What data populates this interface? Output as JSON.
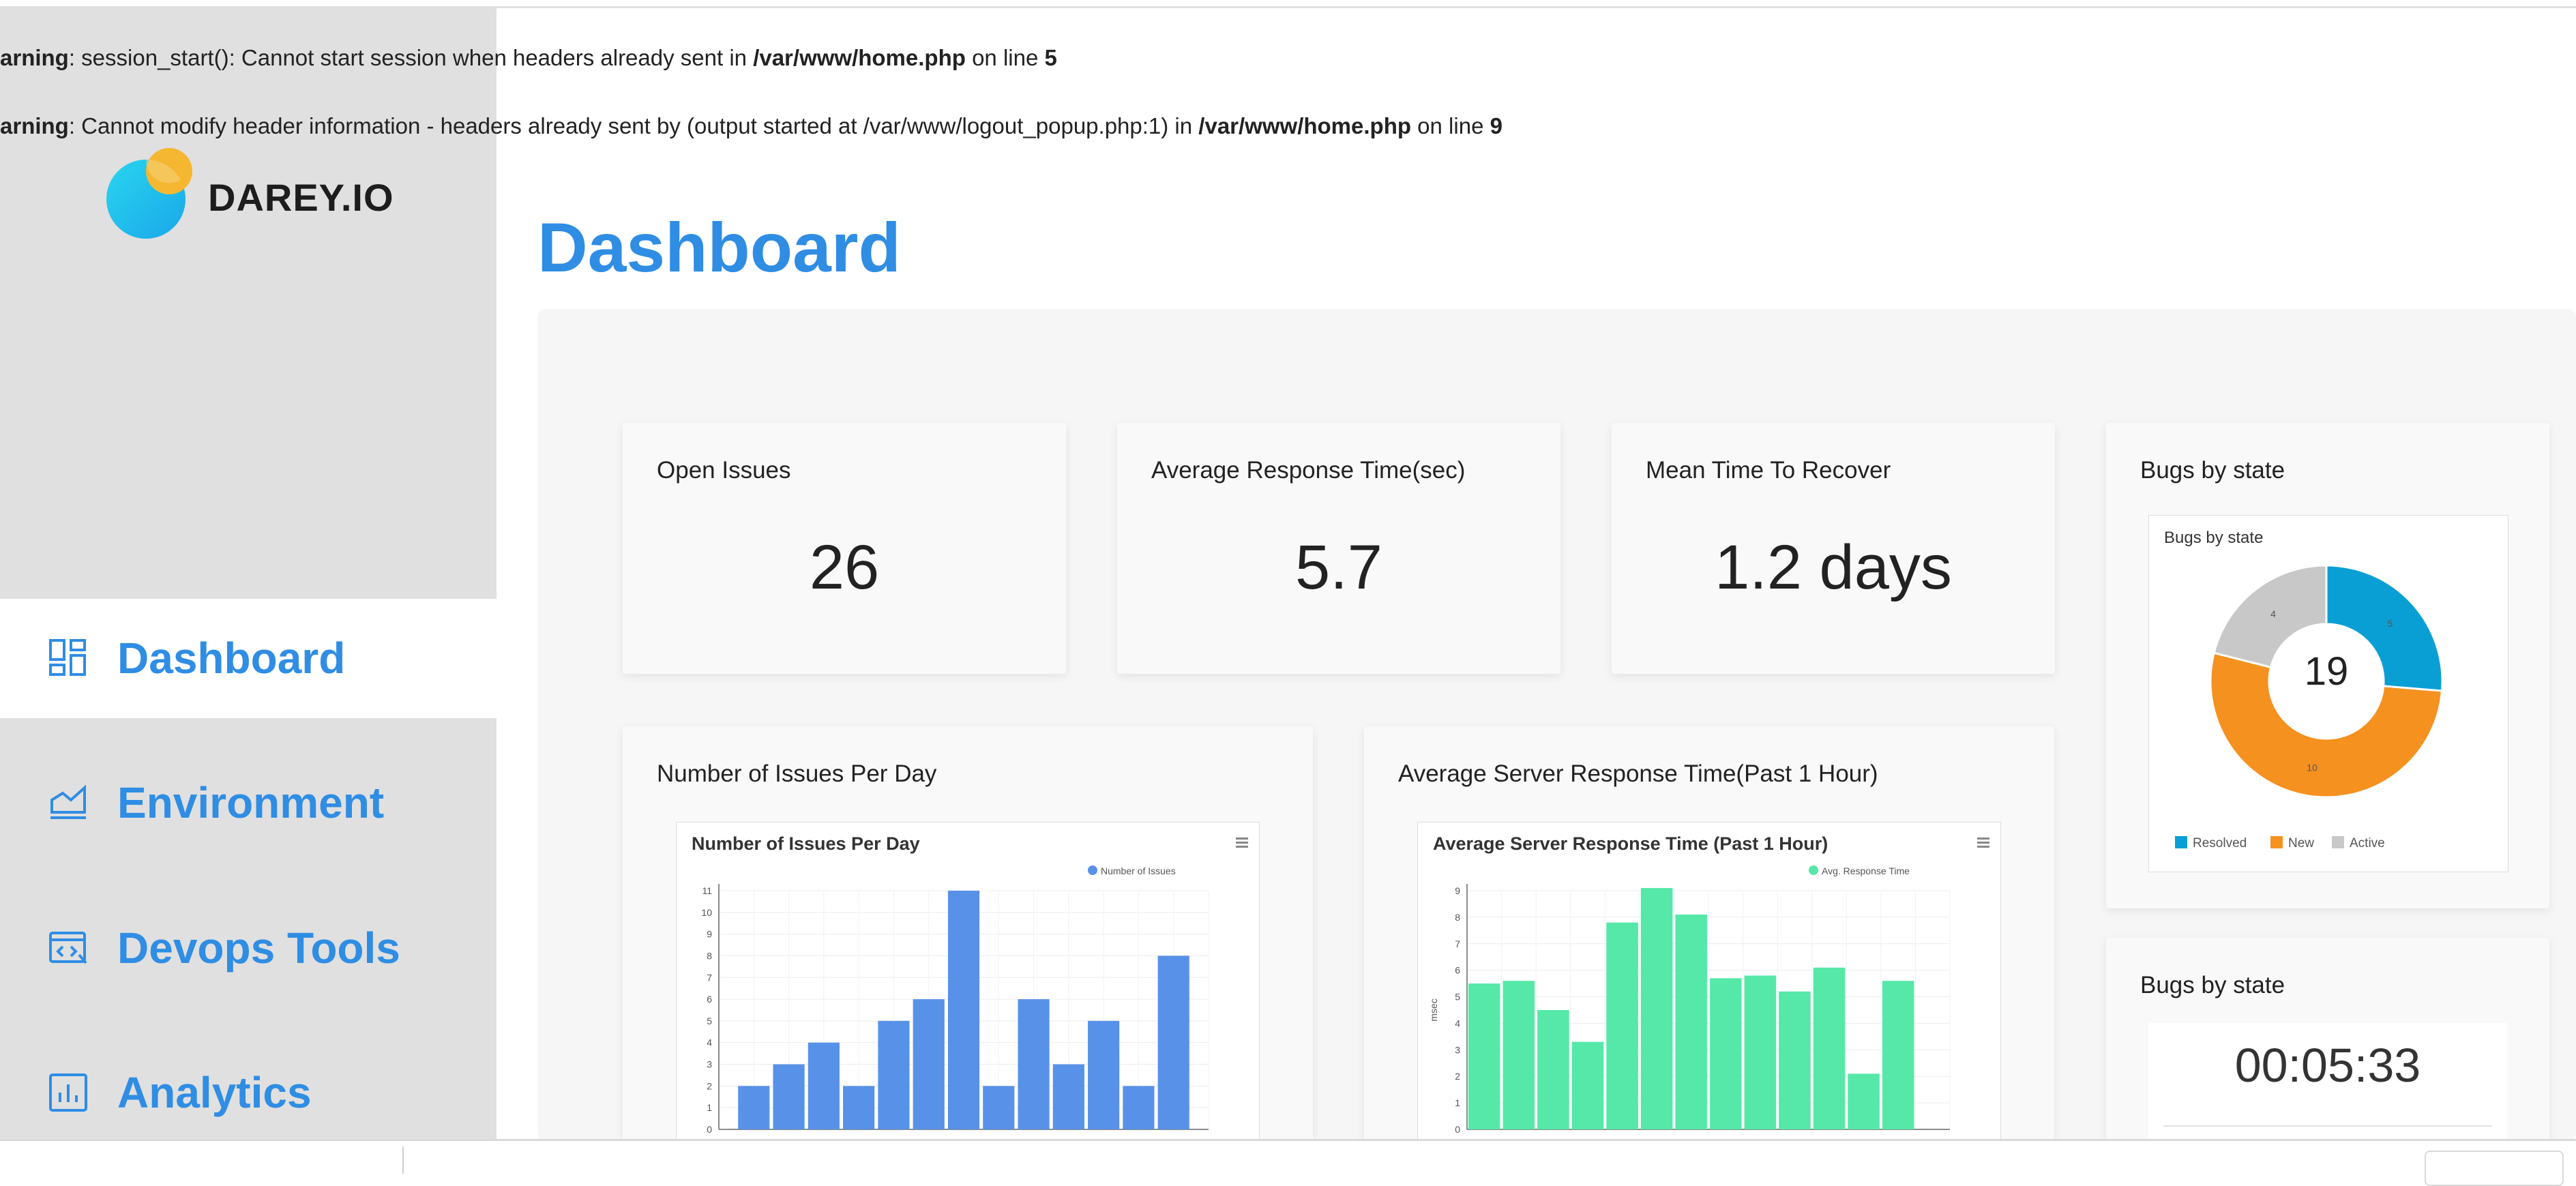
{
  "warnings": [
    {
      "prefix": "arning",
      "text": ": session_start(): Cannot start session when headers already sent in ",
      "file": "/var/www/home.php",
      "mid": " on line ",
      "line": "5"
    },
    {
      "prefix": "arning",
      "text": ": Cannot modify header information - headers already sent by (output started at /var/www/logout_popup.php:1) in ",
      "file": "/var/www/home.php",
      "mid": " on line ",
      "line": "9"
    }
  ],
  "brand": {
    "name": "DAREY.IO"
  },
  "sidebar": {
    "items": [
      {
        "label": "Dashboard",
        "icon": "dashboard-icon",
        "active": true
      },
      {
        "label": "Environment",
        "icon": "area-chart-icon"
      },
      {
        "label": "Devops Tools",
        "icon": "code-window-icon"
      },
      {
        "label": "Analytics",
        "icon": "bar-chart-icon"
      }
    ]
  },
  "page": {
    "title": "Dashboard"
  },
  "stats": [
    {
      "title": "Open Issues",
      "value": "26"
    },
    {
      "title": "Average Response Time(sec)",
      "value": "5.7"
    },
    {
      "title": "Mean Time To Recover",
      "value": "1.2 days"
    }
  ],
  "bugs_card": {
    "title": "Bugs by state"
  },
  "bugs_timer_card": {
    "title": "Bugs by state",
    "timer": "00:05:33"
  },
  "issues_card": {
    "title": "Number of Issues Per Day"
  },
  "response_card": {
    "title": "Average Server Response Time(Past 1 Hour)"
  },
  "colors": {
    "accent": "#2f8de4",
    "issues_bar": "#5891e8",
    "response_bar": "#55e8a8",
    "resolved": "#0a9fd4",
    "new": "#f5911f",
    "active": "#c8c8c8"
  },
  "chart_data": [
    {
      "type": "pie",
      "title": "Bugs by state",
      "center_label": "19",
      "categories": [
        "Resolved",
        "New",
        "Active"
      ],
      "values": [
        5,
        10,
        4
      ],
      "colors": [
        "#0a9fd4",
        "#f5911f",
        "#c8c8c8"
      ],
      "legend": "bottom"
    },
    {
      "type": "bar",
      "title": "Number of Issues Per Day",
      "series": [
        {
          "name": "Number of Issues",
          "values": [
            2,
            3,
            4,
            2,
            5,
            6,
            11,
            2,
            6,
            3,
            5,
            2,
            8
          ]
        }
      ],
      "yticks": [
        0,
        1,
        2,
        3,
        4,
        5,
        6,
        7,
        8,
        9,
        10,
        11
      ],
      "ylim": [
        0,
        11
      ],
      "grid": true,
      "legend": "top-right"
    },
    {
      "type": "bar",
      "title": "Average Server Response Time (Past 1 Hour)",
      "ylabel": "msec",
      "series": [
        {
          "name": "Avg. Response Time",
          "values": [
            5.5,
            5.6,
            4.5,
            3.3,
            7.8,
            9.1,
            8.1,
            5.7,
            5.8,
            5.2,
            6.1,
            2.1,
            5.6
          ]
        }
      ],
      "yticks": [
        0,
        1,
        2,
        3,
        4,
        5,
        6,
        7,
        8,
        9
      ],
      "ylim": [
        0,
        9
      ],
      "grid": true,
      "legend": "top-right"
    }
  ]
}
